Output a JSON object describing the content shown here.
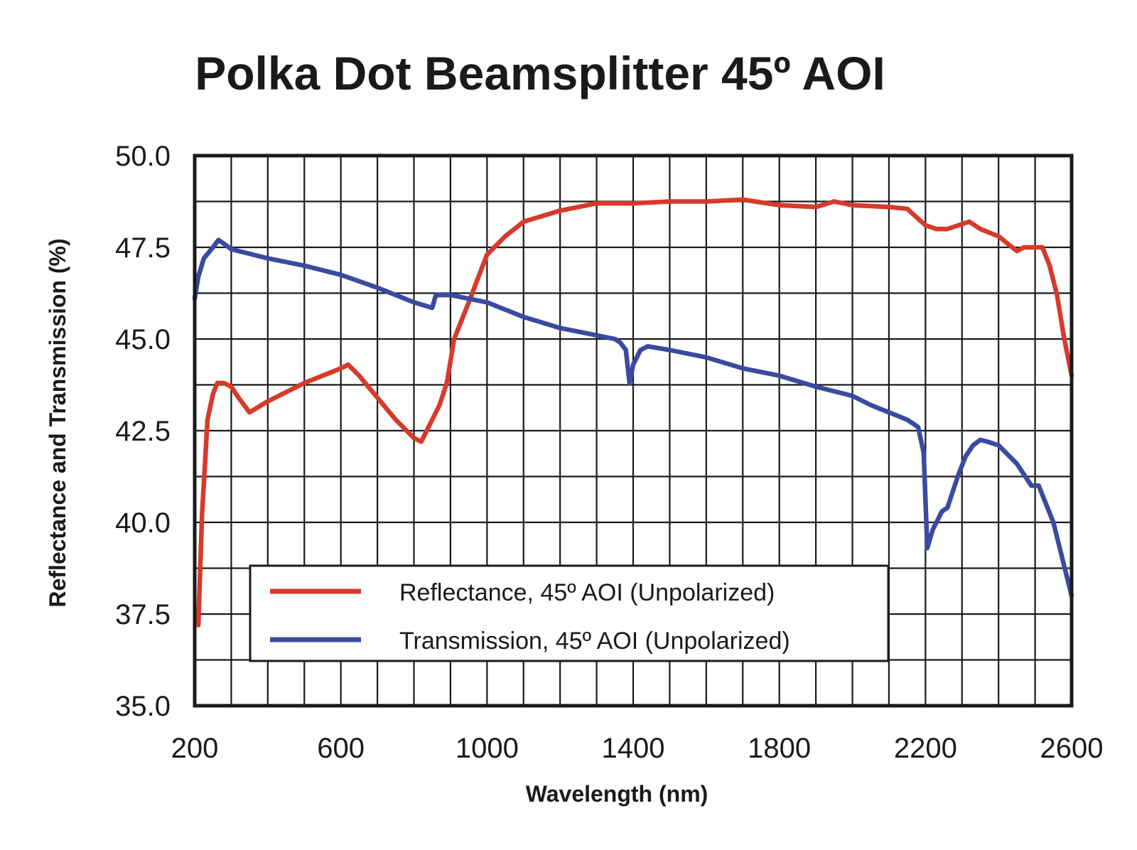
{
  "chart_data": {
    "type": "line",
    "title": "Polka Dot Beamsplitter 45º AOI",
    "xlabel": "Wavelength (nm)",
    "ylabel": "Reflectance and Transmission (%)",
    "xlim": [
      200,
      2600
    ],
    "ylim": [
      35.0,
      50.0
    ],
    "x_ticks": [
      200,
      600,
      1000,
      1400,
      1800,
      2200,
      2600
    ],
    "x_tick_labels": [
      "200",
      "600",
      "1000",
      "1400",
      "1800",
      "2200",
      "2600"
    ],
    "y_ticks": [
      35.0,
      37.5,
      40.0,
      42.5,
      45.0,
      47.5,
      50.0
    ],
    "y_tick_labels": [
      "35.0",
      "37.5",
      "40.0",
      "42.5",
      "45.0",
      "47.5",
      "50.0"
    ],
    "x_minor_step": 100,
    "y_minor_step": 1.25,
    "grid": true,
    "legend_position": "bottom-center",
    "series": [
      {
        "name": "Reflectance, 45º AOI (Unpolarized)",
        "color": "#d63a2b",
        "points": [
          [
            210,
            37.2
          ],
          [
            220,
            40.2
          ],
          [
            235,
            42.8
          ],
          [
            250,
            43.5
          ],
          [
            262,
            43.8
          ],
          [
            280,
            43.8
          ],
          [
            300,
            43.7
          ],
          [
            320,
            43.4
          ],
          [
            350,
            43.0
          ],
          [
            400,
            43.3
          ],
          [
            500,
            43.8
          ],
          [
            600,
            44.2
          ],
          [
            620,
            44.3
          ],
          [
            650,
            44.0
          ],
          [
            700,
            43.4
          ],
          [
            750,
            42.8
          ],
          [
            800,
            42.3
          ],
          [
            820,
            42.2
          ],
          [
            840,
            42.6
          ],
          [
            870,
            43.2
          ],
          [
            890,
            43.8
          ],
          [
            910,
            45.0
          ],
          [
            950,
            46.0
          ],
          [
            1000,
            47.3
          ],
          [
            1050,
            47.8
          ],
          [
            1100,
            48.2
          ],
          [
            1200,
            48.5
          ],
          [
            1300,
            48.7
          ],
          [
            1400,
            48.7
          ],
          [
            1500,
            48.75
          ],
          [
            1600,
            48.75
          ],
          [
            1700,
            48.8
          ],
          [
            1800,
            48.65
          ],
          [
            1900,
            48.6
          ],
          [
            1950,
            48.75
          ],
          [
            2000,
            48.65
          ],
          [
            2100,
            48.6
          ],
          [
            2150,
            48.55
          ],
          [
            2200,
            48.1
          ],
          [
            2230,
            48.0
          ],
          [
            2260,
            48.0
          ],
          [
            2320,
            48.2
          ],
          [
            2350,
            48.0
          ],
          [
            2400,
            47.8
          ],
          [
            2450,
            47.4
          ],
          [
            2470,
            47.5
          ],
          [
            2520,
            47.5
          ],
          [
            2540,
            47.0
          ],
          [
            2560,
            46.2
          ],
          [
            2580,
            45.0
          ],
          [
            2600,
            44.0
          ]
        ]
      },
      {
        "name": "Transmission, 45º AOI (Unpolarized)",
        "color": "#3b4aa0",
        "points": [
          [
            200,
            46.1
          ],
          [
            210,
            46.7
          ],
          [
            225,
            47.2
          ],
          [
            250,
            47.5
          ],
          [
            265,
            47.7
          ],
          [
            280,
            47.6
          ],
          [
            300,
            47.45
          ],
          [
            400,
            47.2
          ],
          [
            500,
            47.0
          ],
          [
            600,
            46.75
          ],
          [
            700,
            46.4
          ],
          [
            800,
            46.0
          ],
          [
            850,
            45.85
          ],
          [
            860,
            46.2
          ],
          [
            900,
            46.2
          ],
          [
            1000,
            46.0
          ],
          [
            1100,
            45.6
          ],
          [
            1200,
            45.3
          ],
          [
            1300,
            45.1
          ],
          [
            1350,
            45.0
          ],
          [
            1365,
            44.9
          ],
          [
            1380,
            44.7
          ],
          [
            1390,
            43.8
          ],
          [
            1400,
            44.3
          ],
          [
            1420,
            44.7
          ],
          [
            1440,
            44.8
          ],
          [
            1500,
            44.7
          ],
          [
            1600,
            44.5
          ],
          [
            1700,
            44.2
          ],
          [
            1800,
            44.0
          ],
          [
            1900,
            43.7
          ],
          [
            2000,
            43.45
          ],
          [
            2050,
            43.2
          ],
          [
            2100,
            43.0
          ],
          [
            2150,
            42.8
          ],
          [
            2180,
            42.6
          ],
          [
            2195,
            41.9
          ],
          [
            2205,
            39.3
          ],
          [
            2220,
            39.8
          ],
          [
            2245,
            40.3
          ],
          [
            2260,
            40.4
          ],
          [
            2290,
            41.3
          ],
          [
            2310,
            41.8
          ],
          [
            2330,
            42.1
          ],
          [
            2350,
            42.25
          ],
          [
            2370,
            42.2
          ],
          [
            2400,
            42.1
          ],
          [
            2450,
            41.6
          ],
          [
            2490,
            41.0
          ],
          [
            2510,
            41.0
          ],
          [
            2550,
            40.0
          ],
          [
            2580,
            38.8
          ],
          [
            2600,
            38.0
          ]
        ]
      }
    ]
  }
}
